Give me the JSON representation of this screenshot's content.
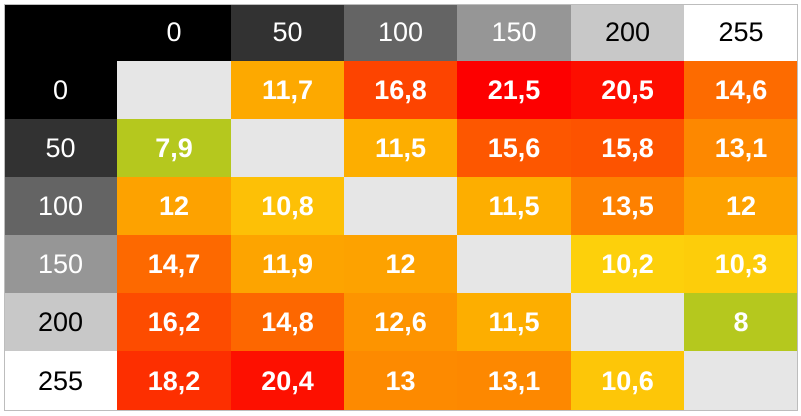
{
  "chart_data": {
    "type": "heatmap",
    "columns": [
      "0",
      "50",
      "100",
      "150",
      "200",
      "255"
    ],
    "rows": [
      "0",
      "50",
      "100",
      "150",
      "200",
      "255"
    ],
    "header_colors": [
      "#000000",
      "#323232",
      "#646464",
      "#969696",
      "#c8c8c8",
      "#ffffff"
    ],
    "header_text_colors": [
      "#ffffff",
      "#ffffff",
      "#ffffff",
      "#ffffff",
      "#000000",
      "#000000"
    ],
    "corner_color": "#000000",
    "diagonal_color": "#e6e6e6",
    "values": [
      [
        null,
        "11,7",
        "16,8",
        "21,5",
        "20,5",
        "14,6"
      ],
      [
        "7,9",
        null,
        "11,5",
        "15,6",
        "15,8",
        "13,1"
      ],
      [
        "12",
        "10,8",
        null,
        "11,5",
        "13,5",
        "12"
      ],
      [
        "14,7",
        "11,9",
        "12",
        null,
        "10,2",
        "10,3"
      ],
      [
        "16,2",
        "14,8",
        "12,6",
        "11,5",
        null,
        "8"
      ],
      [
        "18,2",
        "20,4",
        "13",
        "13,1",
        "10,6",
        null
      ]
    ],
    "color_scale": [
      {
        "value": 8,
        "color": "#b5c81e"
      },
      {
        "value": 10.2,
        "color": "#fdd00b"
      },
      {
        "value": 11.5,
        "color": "#fdae00"
      },
      {
        "value": 13,
        "color": "#fd8a00"
      },
      {
        "value": 16,
        "color": "#fd4f00"
      },
      {
        "value": 21.5,
        "color": "#fd0000"
      }
    ]
  }
}
